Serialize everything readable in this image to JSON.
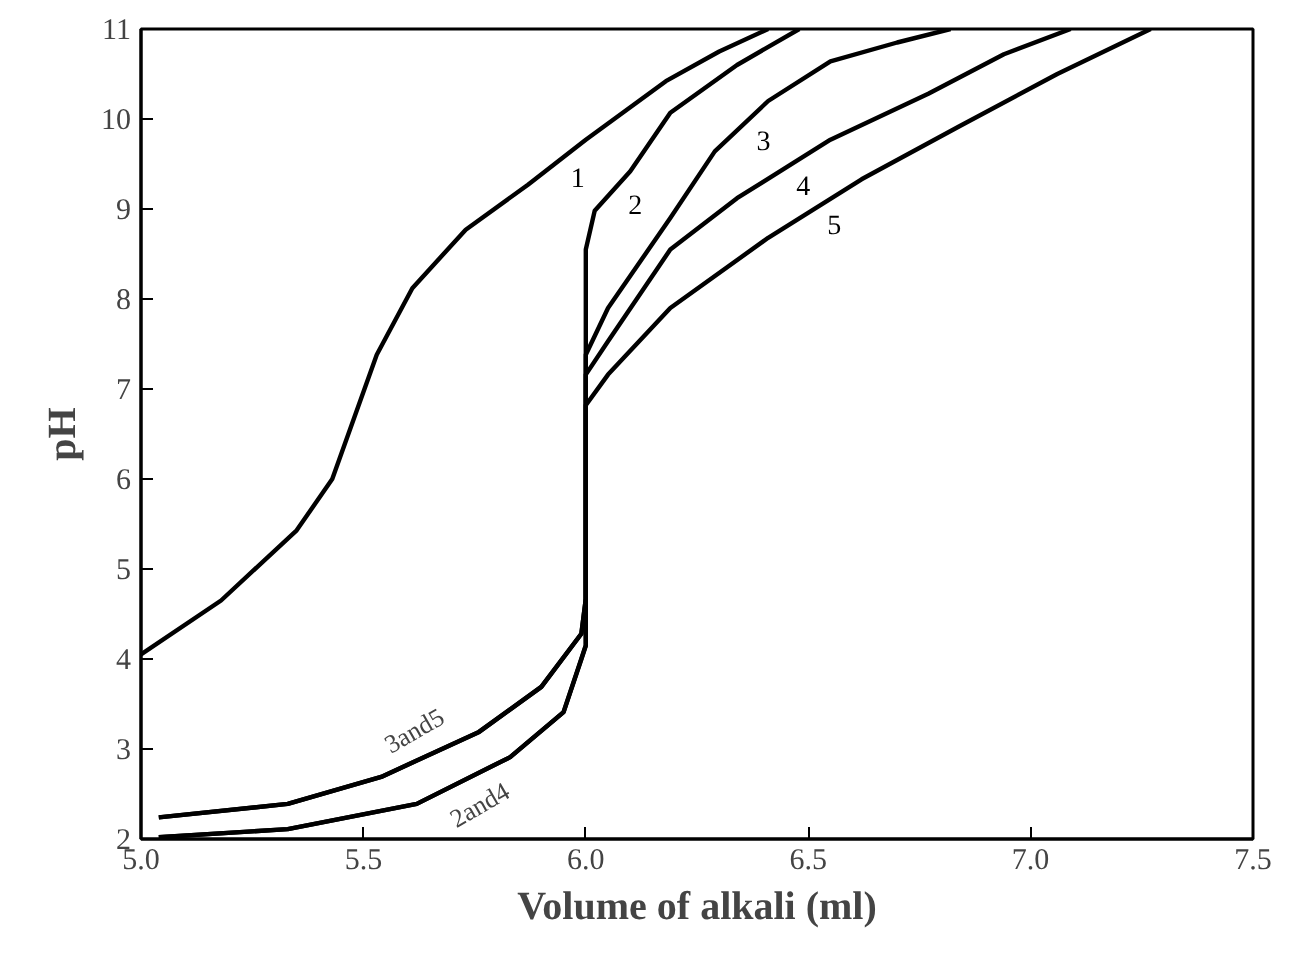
{
  "chart_data": {
    "type": "line",
    "xlabel": "Volume of alkali (ml)",
    "ylabel": "pH",
    "xlim": [
      5.0,
      7.5
    ],
    "ylim": [
      2,
      11
    ],
    "xticks": [
      {
        "value": 5.0,
        "label": "5.0"
      },
      {
        "value": 5.5,
        "label": "5.5"
      },
      {
        "value": 6.0,
        "label": "6.0"
      },
      {
        "value": 6.5,
        "label": "6.5"
      },
      {
        "value": 7.0,
        "label": "7.0"
      },
      {
        "value": 7.5,
        "label": "7.5"
      }
    ],
    "yticks": [
      2,
      3,
      4,
      5,
      6,
      7,
      8,
      9,
      10,
      11
    ],
    "grid": false,
    "marker": "none",
    "line_style": "solid",
    "series": [
      {
        "name": "1",
        "color": "#000000",
        "x": [
          5.0,
          5.18,
          5.35,
          5.43,
          5.53,
          5.61,
          5.73,
          5.87,
          6.0,
          6.18,
          6.3,
          6.41
        ],
        "values": [
          4.05,
          4.65,
          5.43,
          6.0,
          7.38,
          8.12,
          8.77,
          9.27,
          9.77,
          10.42,
          10.75,
          11.0
        ]
      },
      {
        "name": "2",
        "color": "#000000",
        "x": [
          5.04,
          5.33,
          5.62,
          5.83,
          5.95,
          5.99,
          6.0,
          6.0,
          6.02,
          6.1,
          6.19,
          6.34,
          6.48
        ],
        "values": [
          2.02,
          2.11,
          2.39,
          2.91,
          3.41,
          4.0,
          4.15,
          8.55,
          8.98,
          9.42,
          10.07,
          10.6,
          11.0
        ]
      },
      {
        "name": "3",
        "color": "#000000",
        "x": [
          5.04,
          5.33,
          5.54,
          5.76,
          5.9,
          5.99,
          6.0,
          6.0,
          6.05,
          6.19,
          6.29,
          6.41,
          6.55,
          6.7,
          6.82
        ],
        "values": [
          2.24,
          2.39,
          2.69,
          3.19,
          3.69,
          4.28,
          4.67,
          7.38,
          7.9,
          8.9,
          9.64,
          10.2,
          10.64,
          10.85,
          11.0
        ]
      },
      {
        "name": "4",
        "color": "#000000",
        "x": [
          5.04,
          5.33,
          5.62,
          5.83,
          5.95,
          5.99,
          6.0,
          6.0,
          6.05,
          6.19,
          6.34,
          6.55,
          6.77,
          6.94,
          7.09
        ],
        "values": [
          2.02,
          2.11,
          2.39,
          2.91,
          3.41,
          4.0,
          4.15,
          7.16,
          7.53,
          8.55,
          9.12,
          9.77,
          10.28,
          10.72,
          11.0
        ]
      },
      {
        "name": "5",
        "color": "#000000",
        "x": [
          5.04,
          5.33,
          5.54,
          5.76,
          5.9,
          5.99,
          6.0,
          6.0,
          6.05,
          6.19,
          6.41,
          6.62,
          6.84,
          7.06,
          7.27
        ],
        "values": [
          2.24,
          2.39,
          2.69,
          3.19,
          3.69,
          4.28,
          4.67,
          6.82,
          7.16,
          7.9,
          8.68,
          9.33,
          9.92,
          10.5,
          11.0
        ]
      }
    ],
    "annotations": [
      "3and5",
      "2and4"
    ]
  }
}
